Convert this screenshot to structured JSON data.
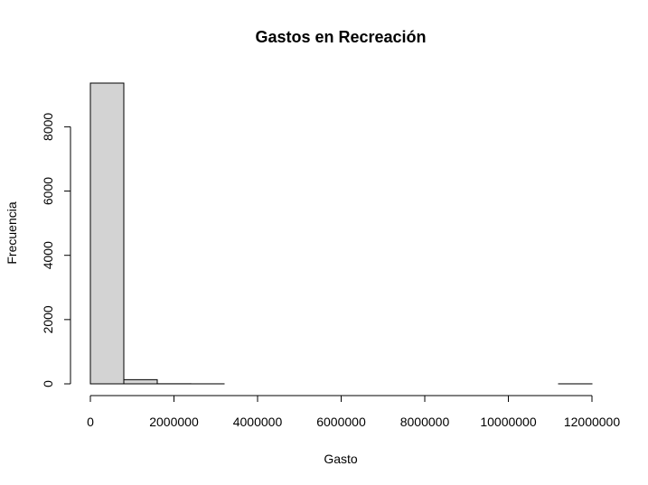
{
  "chart_data": {
    "type": "bar",
    "title": "Gastos en Recreación",
    "xlabel": "Gasto",
    "ylabel": "Frecuencia",
    "xlim": [
      0,
      12000000
    ],
    "ylim": [
      0,
      9360
    ],
    "x_ticks": [
      0,
      2000000,
      4000000,
      6000000,
      8000000,
      10000000,
      12000000
    ],
    "x_tick_labels": [
      "0",
      "2000000",
      "4000000",
      "6000000",
      "8000000",
      "10000000",
      "12000000"
    ],
    "y_ticks": [
      0,
      2000,
      4000,
      6000,
      8000
    ],
    "y_tick_labels": [
      "0",
      "2000",
      "4000",
      "6000",
      "8000"
    ],
    "bin_width": 800000,
    "bins": [
      {
        "start": 0,
        "end": 800000,
        "count": 9360
      },
      {
        "start": 800000,
        "end": 1600000,
        "count": 130
      },
      {
        "start": 1600000,
        "end": 2400000,
        "count": 3
      },
      {
        "start": 2400000,
        "end": 3200000,
        "count": 1
      },
      {
        "start": 3200000,
        "end": 4000000,
        "count": 0
      },
      {
        "start": 4000000,
        "end": 4800000,
        "count": 0
      },
      {
        "start": 4800000,
        "end": 5600000,
        "count": 0
      },
      {
        "start": 5600000,
        "end": 6400000,
        "count": 0
      },
      {
        "start": 6400000,
        "end": 7200000,
        "count": 0
      },
      {
        "start": 7200000,
        "end": 8000000,
        "count": 0
      },
      {
        "start": 8000000,
        "end": 8800000,
        "count": 0
      },
      {
        "start": 8800000,
        "end": 9600000,
        "count": 0
      },
      {
        "start": 9600000,
        "end": 10400000,
        "count": 0
      },
      {
        "start": 10400000,
        "end": 11200000,
        "count": 0
      },
      {
        "start": 11200000,
        "end": 12000000,
        "count": 1
      }
    ],
    "bar_fill": "#d3d3d3",
    "grid": false,
    "legend": "none"
  }
}
